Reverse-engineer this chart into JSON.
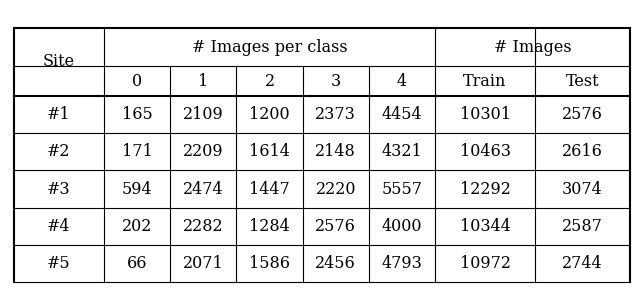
{
  "sites": [
    "#1",
    "#2",
    "#3",
    "#4",
    "#5"
  ],
  "class_cols": [
    "0",
    "1",
    "2",
    "3",
    "4"
  ],
  "images_per_class": [
    [
      165,
      2109,
      1200,
      2373,
      4454
    ],
    [
      171,
      2209,
      1614,
      2148,
      4321
    ],
    [
      594,
      2474,
      1447,
      2220,
      5557
    ],
    [
      202,
      2282,
      1284,
      2576,
      4000
    ],
    [
      66,
      2071,
      1586,
      2456,
      4793
    ]
  ],
  "train": [
    10301,
    10463,
    12292,
    10344,
    10972
  ],
  "test": [
    2576,
    2616,
    3074,
    2587,
    2744
  ],
  "header1_text": "# Images per class",
  "header2_text": "# Images",
  "col_site": "Site",
  "col_train": "Train",
  "col_test": "Test",
  "bg_color": "#ffffff",
  "line_color": "#000000",
  "font_size": 11.5,
  "lw_thick": 1.5,
  "lw_thin": 0.8
}
